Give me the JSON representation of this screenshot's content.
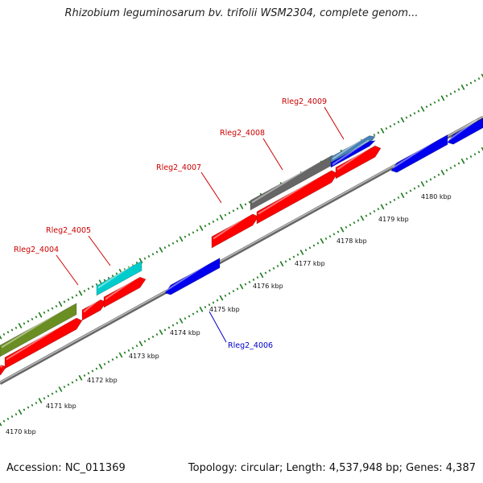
{
  "title": "Rhizobium leguminosarum bv. trifolii WSM2304, complete genom...",
  "footer": {
    "accession": "Accession: NC_011369",
    "topology": "Topology: circular; Length: 4,537,948 bp; Genes: 4,387"
  },
  "scale_labels": [
    "4170 kbp",
    "4171 kbp",
    "4172 kbp",
    "4173 kbp",
    "4174 kbp",
    "4175 kbp",
    "4176 kbp",
    "4177 kbp",
    "4178 kbp",
    "4179 kbp",
    "4180 kbp"
  ],
  "gene_labels": [
    "Rleg2_4004",
    "Rleg2_4005",
    "Rleg2_4006",
    "Rleg2_4007",
    "Rleg2_4008",
    "Rleg2_4009"
  ],
  "colors": {
    "forward_cds": "#ff0000",
    "reverse_cds": "#0000ee",
    "olive_feature": "#6b8e23",
    "cyan_feature": "#00cccc",
    "gray_feature": "#666666",
    "steelblue_feature": "#4682b4",
    "backbone": "#888888",
    "tick": "#1a7a1a",
    "label_forward": "#cc0000",
    "label_reverse": "#0000cc"
  }
}
